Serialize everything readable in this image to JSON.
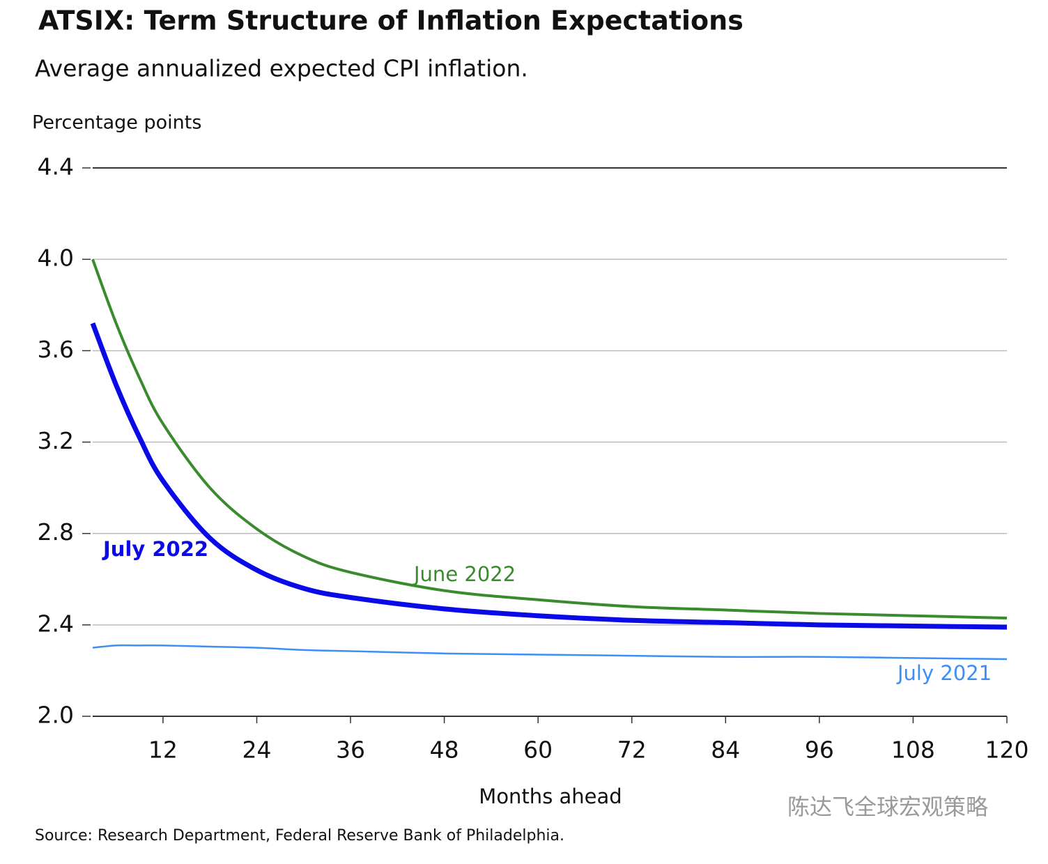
{
  "chart_data": {
    "type": "line",
    "title": "ATSIX: Term Structure of Inflation Expectations",
    "subtitle": "Average annualized expected CPI inflation.",
    "y_label": "Percentage points",
    "x_label": "Months ahead",
    "source": "Source: Research Department, Federal Reserve Bank of Philadelphia.",
    "watermark": "陈达飞全球宏观策略",
    "x": [
      3,
      6,
      9,
      12,
      18,
      24,
      30,
      36,
      48,
      60,
      72,
      84,
      96,
      108,
      120
    ],
    "series": [
      {
        "name": "July 2022",
        "color": "#0a0ae6",
        "width": 7,
        "values": [
          3.72,
          3.45,
          3.22,
          3.03,
          2.78,
          2.64,
          2.56,
          2.52,
          2.47,
          2.44,
          2.42,
          2.41,
          2.4,
          2.395,
          2.39
        ]
      },
      {
        "name": "June 2022",
        "color": "#3a8a2e",
        "width": 4,
        "values": [
          4.0,
          3.72,
          3.48,
          3.28,
          3.0,
          2.82,
          2.7,
          2.63,
          2.55,
          2.51,
          2.48,
          2.465,
          2.45,
          2.44,
          2.43
        ]
      },
      {
        "name": "July 2021",
        "color": "#3d8ef5",
        "width": 2.5,
        "values": [
          2.3,
          2.31,
          2.31,
          2.31,
          2.305,
          2.3,
          2.29,
          2.285,
          2.275,
          2.27,
          2.265,
          2.26,
          2.26,
          2.255,
          2.25
        ]
      }
    ],
    "xlim": [
      3,
      120
    ],
    "xticks": [
      12,
      24,
      36,
      48,
      60,
      72,
      84,
      96,
      108,
      120
    ],
    "ylim": [
      2.0,
      4.4
    ],
    "yticks": [
      {
        "value": 2.0,
        "label": "2.0"
      },
      2.4,
      2.8,
      3.2,
      3.6,
      {
        "value": 4.0,
        "label": "4.0"
      },
      4.4
    ],
    "grid": true
  }
}
